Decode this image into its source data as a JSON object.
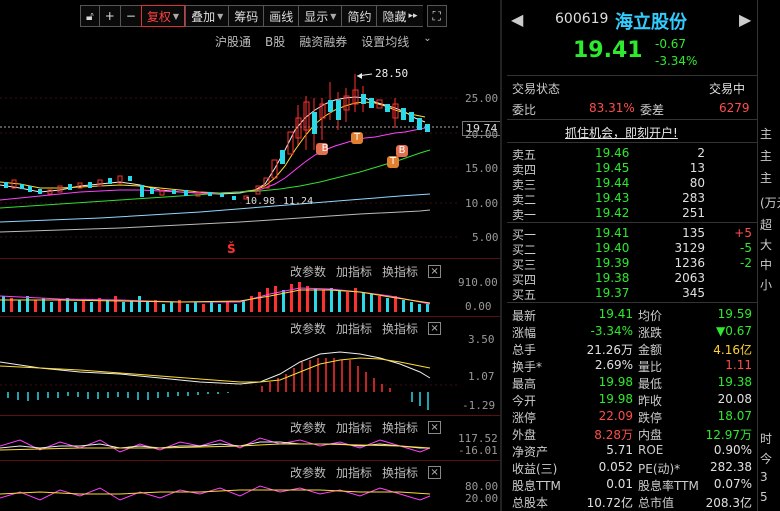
{
  "toolbar": {
    "buttons": [
      "复权",
      "叠加",
      "筹码",
      "画线",
      "显示",
      "简约",
      "隐藏"
    ],
    "more": "▸▸"
  },
  "subtools": [
    "沪股通",
    "B股",
    "融资融券",
    "设置均线"
  ],
  "main_chart": {
    "price_tag": "19.74",
    "high_label": "28.50",
    "low_label": "10.98",
    "low_date": "11.24",
    "markers": [
      "B",
      "T",
      "T",
      "B"
    ],
    "s_marker": "Š",
    "y_ticks": [
      "25.00",
      "20.00",
      "15.00",
      "10.00",
      "5.00"
    ]
  },
  "indicator_bars": {
    "change_param": "改参数",
    "add_indicator": "加指标",
    "switch_indicator": "换指标",
    "close": "×"
  },
  "volume_panel": {
    "y_ticks": [
      "910.00",
      "0.00"
    ]
  },
  "macd_panel": {
    "y_ticks": [
      "3.50",
      "1.07",
      "-1.29"
    ]
  },
  "panel3": {
    "y_ticks": [
      "117.52",
      "-16.01"
    ]
  },
  "panel4": {
    "y_ticks": [
      "80.00",
      "20.00"
    ]
  },
  "quote": {
    "code": "600619",
    "name": "海立股份",
    "price": "19.41",
    "change": "-0.67",
    "change_pct": "-3.34%",
    "trade_status_label": "交易状态",
    "trade_status": "交易中",
    "wb_label": "委比",
    "wb_value": "83.31%",
    "wc_label": "委差",
    "wc_value": "6279",
    "promo": "抓住机会，即刻开户!",
    "sell": [
      {
        "label": "卖五",
        "price": "19.46",
        "vol": "2"
      },
      {
        "label": "卖四",
        "price": "19.45",
        "vol": "13"
      },
      {
        "label": "卖三",
        "price": "19.44",
        "vol": "80"
      },
      {
        "label": "卖二",
        "price": "19.43",
        "vol": "283"
      },
      {
        "label": "卖一",
        "price": "19.42",
        "vol": "251"
      }
    ],
    "buy": [
      {
        "label": "买一",
        "price": "19.41",
        "vol": "135",
        "delta": "+5"
      },
      {
        "label": "买二",
        "price": "19.40",
        "vol": "3129",
        "delta": "-5"
      },
      {
        "label": "买三",
        "price": "19.39",
        "vol": "1236",
        "delta": "-2"
      },
      {
        "label": "买四",
        "price": "19.38",
        "vol": "2063",
        "delta": ""
      },
      {
        "label": "买五",
        "price": "19.37",
        "vol": "345",
        "delta": ""
      }
    ],
    "stats": [
      {
        "l1": "最新",
        "v1": "19.41",
        "c1": "green",
        "l2": "均价",
        "v2": "19.59",
        "c2": "green"
      },
      {
        "l1": "涨幅",
        "v1": "-3.34%",
        "c1": "green",
        "l2": "涨跌",
        "v2": "▼0.67",
        "c2": "green"
      },
      {
        "l1": "总手",
        "v1": "21.26万",
        "c1": "white",
        "l2": "金额",
        "v2": "4.16亿",
        "c2": "yellow"
      },
      {
        "l1": "换手*",
        "v1": "2.69%",
        "c1": "white",
        "l2": "量比",
        "v2": "1.11",
        "c2": "red"
      },
      {
        "l1": "最高",
        "v1": "19.98",
        "c1": "green",
        "l2": "最低",
        "v2": "19.38",
        "c2": "green"
      },
      {
        "l1": "今开",
        "v1": "19.98",
        "c1": "green",
        "l2": "昨收",
        "v2": "20.08",
        "c2": "white"
      },
      {
        "l1": "涨停",
        "v1": "22.09",
        "c1": "red",
        "l2": "跌停",
        "v2": "18.07",
        "c2": "green"
      },
      {
        "l1": "外盘",
        "v1": "8.28万",
        "c1": "red",
        "l2": "内盘",
        "v2": "12.97万",
        "c2": "green"
      },
      {
        "l1": "净资产",
        "v1": "5.71",
        "c1": "white",
        "l2": "ROE",
        "v2": "0.90%",
        "c2": "white"
      },
      {
        "l1": "收益(三)",
        "v1": "0.052",
        "c1": "white",
        "l2": "PE(动)*",
        "v2": "282.38",
        "c2": "white"
      },
      {
        "l1": "股息TTM",
        "v1": "0.01",
        "c1": "white",
        "l2": "股息率TTM",
        "v2": "0.07%",
        "c2": "white"
      },
      {
        "l1": "总股本",
        "v1": "10.72亿",
        "c1": "white",
        "l2": "总市值",
        "v2": "208.3亿",
        "c2": "white"
      }
    ]
  },
  "far_right": [
    "主",
    "主",
    "主",
    "(万元",
    "超",
    "大",
    "中",
    "小",
    "时",
    "今",
    "3",
    "5"
  ]
}
